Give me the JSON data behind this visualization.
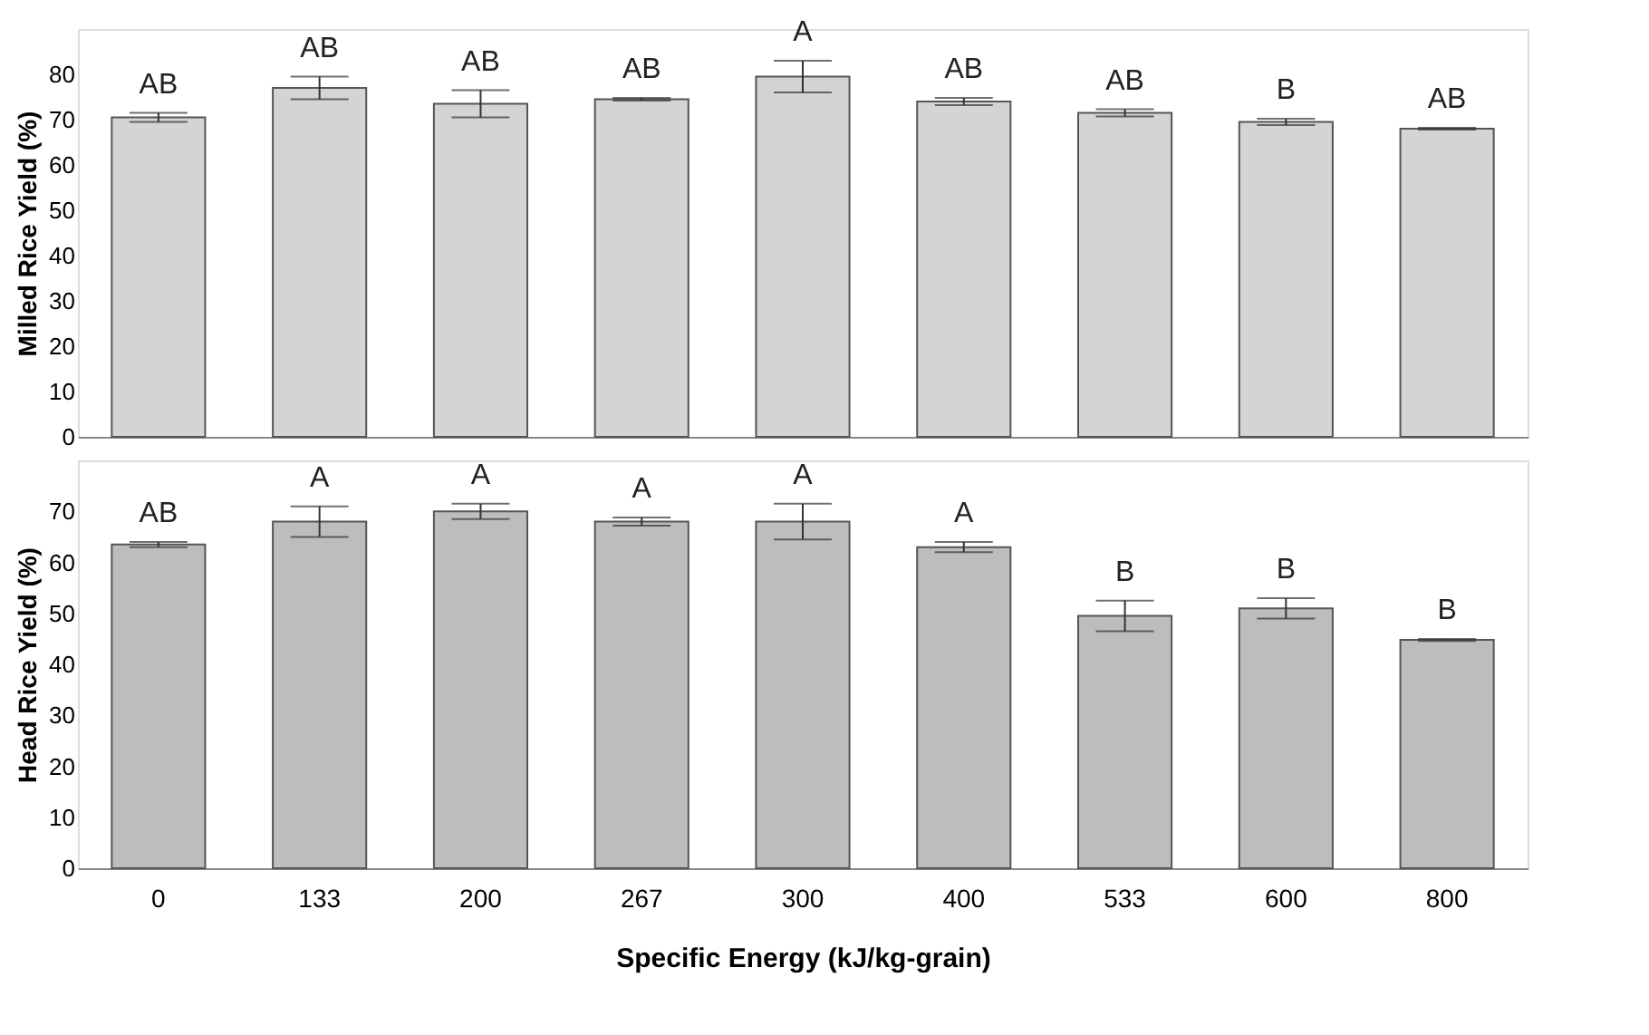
{
  "chart_data": [
    {
      "type": "bar",
      "ylabel": "Milled Rice Yield (%)",
      "categories": [
        "0",
        "133",
        "200",
        "267",
        "300",
        "400",
        "533",
        "600",
        "800"
      ],
      "values": [
        70.5,
        77,
        73.5,
        74.5,
        79.5,
        74,
        71.5,
        69.5,
        68
      ],
      "errors": [
        1,
        2.5,
        3,
        0.3,
        3.5,
        0.8,
        0.8,
        0.7,
        0.2
      ],
      "color": "#d4d4d4",
      "ylim": [
        0,
        90
      ],
      "yticks": [
        0,
        10,
        20,
        30,
        40,
        50,
        60,
        70,
        80
      ],
      "grid": false,
      "tick_labels": "y",
      "annotations": [
        "AB",
        "AB",
        "AB",
        "AB",
        "A",
        "AB",
        "AB",
        "B",
        "AB"
      ]
    },
    {
      "type": "bar",
      "xlabel": "Specific Energy (kJ/kg-grain)",
      "ylabel": "Head Rice Yield (%)",
      "categories": [
        "0",
        "133",
        "200",
        "267",
        "300",
        "400",
        "533",
        "600",
        "800"
      ],
      "values": [
        63.5,
        68,
        70,
        68,
        68,
        63,
        49.5,
        51,
        44.8
      ],
      "errors": [
        0.5,
        3,
        1.5,
        0.8,
        3.5,
        1,
        3,
        2,
        0.2
      ],
      "color": "#bdbdbd",
      "ylim": [
        0,
        80
      ],
      "yticks": [
        0,
        10,
        20,
        30,
        40,
        50,
        60,
        70
      ],
      "grid": false,
      "annotations": [
        "AB",
        "A",
        "A",
        "A",
        "A",
        "A",
        "B",
        "B",
        "B"
      ]
    }
  ]
}
